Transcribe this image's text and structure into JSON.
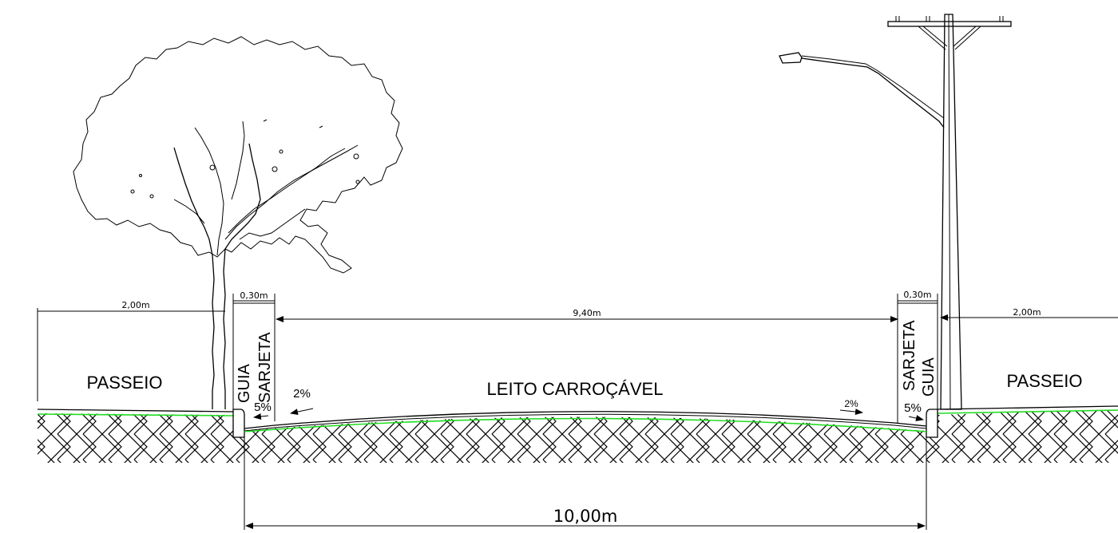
{
  "colors": {
    "line": "#000000",
    "subgrade": "#22dd22",
    "background": "#ffffff"
  },
  "dimensions": {
    "left_sidewalk_width": "2,00m",
    "left_gutter_width": "0,30m",
    "carriageway_width": "9,40m",
    "right_gutter_width": "0,30m",
    "right_sidewalk_width": "2,00m",
    "total_width": "10,00m"
  },
  "labels": {
    "left_sidewalk": "PASSEIO",
    "right_sidewalk": "PASSEIO",
    "carriageway": "LEITO CARROÇÁVEL",
    "left_curb": "GUIA",
    "left_gutter": "SARJETA",
    "right_gutter": "SARJETA",
    "right_curb": "GUIA"
  },
  "slopes": {
    "left_carriageway": "2%",
    "left_gutter": "5%",
    "right_carriageway": "2%",
    "right_gutter": "5%"
  },
  "icons": [
    "tree-icon",
    "utility-pole-icon",
    "street-lamp-icon"
  ]
}
